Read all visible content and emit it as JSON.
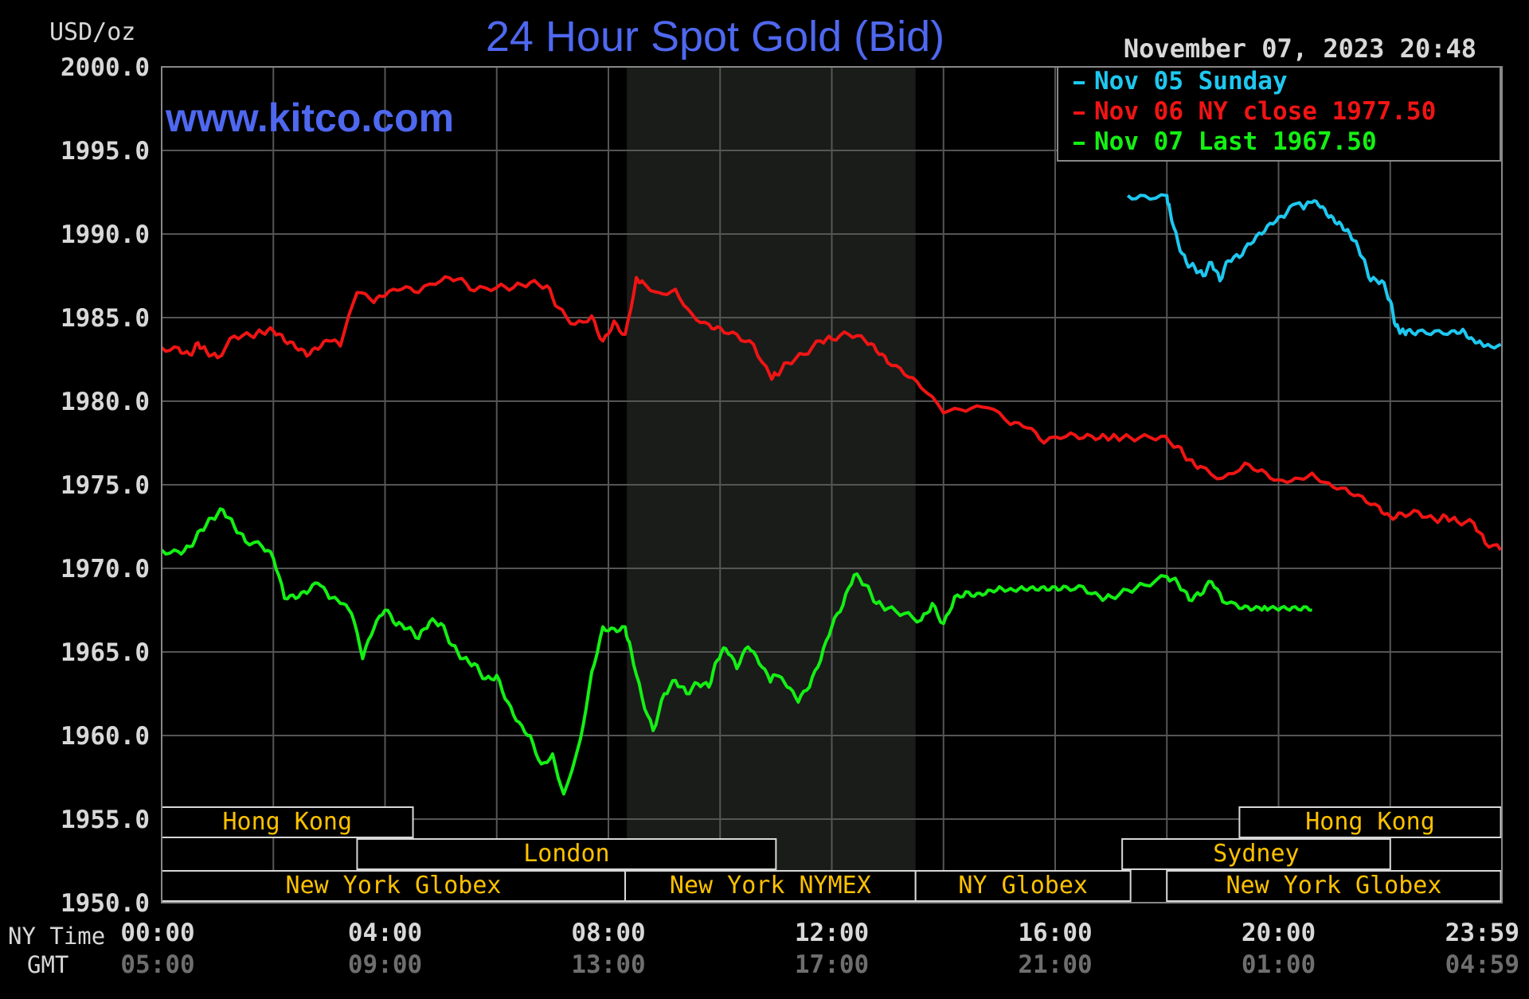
{
  "chart": {
    "title": "24 Hour Spot Gold (Bid)",
    "site": "www.kitco.com",
    "unit_label": "USD/oz",
    "timestamp": "November 07, 2023 20:48",
    "axis_captions": {
      "ny": "NY Time",
      "gmt": "GMT"
    }
  },
  "chart_data": {
    "type": "line",
    "title": "24 Hour Spot Gold (Bid)",
    "ylabel": "USD/oz",
    "ylim": [
      1950,
      2000
    ],
    "xlim": [
      0,
      24
    ],
    "grid": true,
    "legend_position": "top-right",
    "y_ticks": [
      "2000.0",
      "1995.0",
      "1990.0",
      "1985.0",
      "1980.0",
      "1975.0",
      "1970.0",
      "1965.0",
      "1960.0",
      "1955.0",
      "1950.0"
    ],
    "x_ticks": [
      {
        "ny": "00:00",
        "gmt": "05:00"
      },
      {
        "ny": "04:00",
        "gmt": "09:00"
      },
      {
        "ny": "08:00",
        "gmt": "13:00"
      },
      {
        "ny": "12:00",
        "gmt": "17:00"
      },
      {
        "ny": "16:00",
        "gmt": "21:00"
      },
      {
        "ny": "20:00",
        "gmt": "01:00"
      },
      {
        "ny": "23:59",
        "gmt": "04:59"
      }
    ],
    "nymex_hours": [
      8.33,
      13.5
    ],
    "series": [
      {
        "name": "Nov 05 Sunday",
        "legend": "Nov 05 Sunday",
        "color": "#1ec8f0",
        "x": [
          17.3,
          17.6,
          18.0,
          18.05,
          18.2,
          18.35,
          18.5,
          18.65,
          18.8,
          18.95,
          19.1,
          19.3,
          19.5,
          19.7,
          19.9,
          20.1,
          20.3,
          20.45,
          20.6,
          20.75,
          20.9,
          21.05,
          21.2,
          21.35,
          21.5,
          21.65,
          21.85,
          22.0,
          22.1,
          22.2,
          22.3,
          22.5,
          22.8,
          23.1,
          23.3,
          23.45,
          23.6,
          23.75,
          23.98
        ],
        "y": [
          1992.3,
          1992.3,
          1992.3,
          1991.5,
          1989.5,
          1988.3,
          1988.0,
          1987.5,
          1988.3,
          1987.2,
          1988.4,
          1988.6,
          1989.4,
          1990.0,
          1990.6,
          1991.0,
          1991.8,
          1991.5,
          1991.9,
          1991.6,
          1991.0,
          1990.6,
          1990.2,
          1989.6,
          1988.6,
          1987.2,
          1987.2,
          1986.0,
          1984.5,
          1984.2,
          1984.2,
          1984.2,
          1984.2,
          1984.2,
          1984.3,
          1983.8,
          1983.6,
          1983.4,
          1983.4
        ]
      },
      {
        "name": "Nov 06 NY close 1977.50",
        "legend": "Nov 06 NY close 1977.50",
        "color": "#f01414",
        "x": [
          0,
          0.3,
          0.5,
          0.65,
          0.8,
          1.0,
          1.3,
          1.6,
          1.8,
          2.0,
          2.2,
          2.4,
          2.6,
          2.8,
          3.0,
          3.2,
          3.5,
          3.8,
          4.0,
          4.3,
          4.6,
          5.0,
          5.3,
          5.6,
          6.0,
          6.3,
          6.6,
          6.9,
          7.1,
          7.4,
          7.7,
          7.9,
          8.1,
          8.3,
          8.5,
          8.6,
          8.9,
          9.2,
          9.5,
          9.8,
          10.0,
          10.3,
          10.6,
          10.9,
          11.0,
          11.2,
          11.5,
          11.8,
          12.0,
          12.3,
          12.6,
          12.8,
          13.0,
          13.3,
          13.6,
          14.0,
          14.4,
          14.8,
          15.2,
          15.5,
          15.8,
          16.2,
          16.5,
          16.8,
          17.0,
          17.2,
          17.5,
          17.9,
          18.2,
          18.4,
          18.6,
          19.0,
          19.4,
          19.7,
          20.0,
          20.3,
          20.6,
          20.9,
          21.2,
          21.5,
          21.8,
          22.0,
          22.2,
          22.5,
          22.8,
          23.0,
          23.2,
          23.5,
          23.7,
          23.98
        ],
        "y": [
          1983.2,
          1983.2,
          1982.8,
          1983.5,
          1983.0,
          1982.6,
          1983.9,
          1983.9,
          1984.1,
          1984.2,
          1983.6,
          1983.2,
          1982.7,
          1983.1,
          1983.6,
          1983.3,
          1986.5,
          1985.9,
          1986.3,
          1986.7,
          1986.5,
          1987.2,
          1987.3,
          1986.6,
          1986.8,
          1986.8,
          1987.1,
          1986.9,
          1985.6,
          1984.6,
          1985.1,
          1983.6,
          1984.8,
          1984.0,
          1987.4,
          1987.2,
          1986.5,
          1986.7,
          1985.2,
          1984.6,
          1984.4,
          1984.0,
          1983.4,
          1981.5,
          1981.6,
          1982.3,
          1982.8,
          1983.6,
          1983.7,
          1984.0,
          1983.6,
          1983.0,
          1982.3,
          1981.6,
          1980.8,
          1979.3,
          1979.4,
          1979.6,
          1978.6,
          1978.4,
          1977.5,
          1977.9,
          1977.8,
          1977.8,
          1977.8,
          1977.8,
          1977.8,
          1977.9,
          1977.3,
          1976.5,
          1976.1,
          1975.4,
          1976.3,
          1975.9,
          1975.3,
          1975.4,
          1975.7,
          1975.1,
          1974.8,
          1974.3,
          1973.7,
          1973.1,
          1973.3,
          1973.4,
          1972.9,
          1973.1,
          1972.8,
          1972.7,
          1971.5,
          1971.1
        ]
      },
      {
        "name": "Nov 07 Last 1967.50",
        "legend": "Nov 07 Last 1967.50",
        "color": "#14f014",
        "x": [
          0,
          0.3,
          0.5,
          0.7,
          0.9,
          1.1,
          1.3,
          1.5,
          1.8,
          2.0,
          2.2,
          2.4,
          2.6,
          2.8,
          3.0,
          3.2,
          3.4,
          3.6,
          3.8,
          4.0,
          4.2,
          4.4,
          4.6,
          4.8,
          5.0,
          5.2,
          5.4,
          5.6,
          5.8,
          6.0,
          6.2,
          6.4,
          6.6,
          6.8,
          7.0,
          7.2,
          7.5,
          7.7,
          7.9,
          8.1,
          8.3,
          8.4,
          8.6,
          8.8,
          9.0,
          9.2,
          9.4,
          9.6,
          9.8,
          9.95,
          10.1,
          10.3,
          10.5,
          10.7,
          10.9,
          11.0,
          11.2,
          11.4,
          11.6,
          11.8,
          12.0,
          12.2,
          12.4,
          12.6,
          12.8,
          13.0,
          13.3,
          13.6,
          13.8,
          14.0,
          14.2,
          14.4,
          14.6,
          14.8,
          15.0,
          15.2,
          15.4,
          15.6,
          15.8,
          16.0,
          16.2,
          16.5,
          16.8,
          17.0,
          17.3,
          17.6,
          18.0,
          18.2,
          18.4,
          18.6,
          18.8,
          19.0,
          19.3,
          19.5,
          19.7,
          19.8,
          20.0,
          20.2,
          20.4,
          20.6
        ],
        "y": [
          1971.1,
          1971.0,
          1971.3,
          1972.3,
          1973.0,
          1973.5,
          1972.5,
          1971.6,
          1971.3,
          1970.6,
          1968.2,
          1968.2,
          1968.5,
          1969.1,
          1968.2,
          1967.9,
          1967.3,
          1964.6,
          1966.4,
          1967.5,
          1966.6,
          1966.4,
          1965.8,
          1966.8,
          1966.7,
          1965.4,
          1964.6,
          1964.3,
          1963.4,
          1963.6,
          1962.0,
          1960.8,
          1960.0,
          1958.3,
          1958.9,
          1956.5,
          1959.8,
          1963.8,
          1966.5,
          1966.4,
          1966.5,
          1965.2,
          1962.3,
          1960.3,
          1962.5,
          1963.3,
          1962.5,
          1963.1,
          1962.9,
          1964.5,
          1965.2,
          1964.0,
          1965.3,
          1964.3,
          1963.2,
          1963.6,
          1962.9,
          1962.0,
          1962.9,
          1964.5,
          1966.5,
          1967.8,
          1969.6,
          1969.0,
          1967.9,
          1967.6,
          1967.3,
          1966.9,
          1967.9,
          1966.7,
          1968.3,
          1968.6,
          1968.5,
          1968.7,
          1968.9,
          1968.8,
          1968.9,
          1968.9,
          1968.9,
          1968.9,
          1968.9,
          1968.9,
          1968.3,
          1968.3,
          1968.7,
          1969.0,
          1969.5,
          1969.1,
          1968.1,
          1968.4,
          1969.2,
          1968.0,
          1967.6,
          1967.5,
          1967.5,
          1967.5,
          1967.5,
          1967.5,
          1967.5,
          1967.5
        ]
      }
    ],
    "sessions": [
      {
        "label": "Hong Kong",
        "row": 0,
        "start": 0,
        "end": 4.5
      },
      {
        "label": "Hong Kong",
        "row": 0,
        "start": 19.3,
        "end": 23.98
      },
      {
        "label": "London",
        "row": 1,
        "start": 3.5,
        "end": 11.0
      },
      {
        "label": "Sydney",
        "row": 1,
        "start": 17.2,
        "end": 22.0
      },
      {
        "label": "New York Globex",
        "row": 2,
        "start": 0,
        "end": 8.3
      },
      {
        "label": "New York NYMEX",
        "row": 2,
        "start": 8.3,
        "end": 13.5
      },
      {
        "label": "NY Globex",
        "row": 2,
        "start": 13.5,
        "end": 17.35
      },
      {
        "label": "New York Globex",
        "row": 2,
        "start": 18.0,
        "end": 23.98
      }
    ]
  }
}
